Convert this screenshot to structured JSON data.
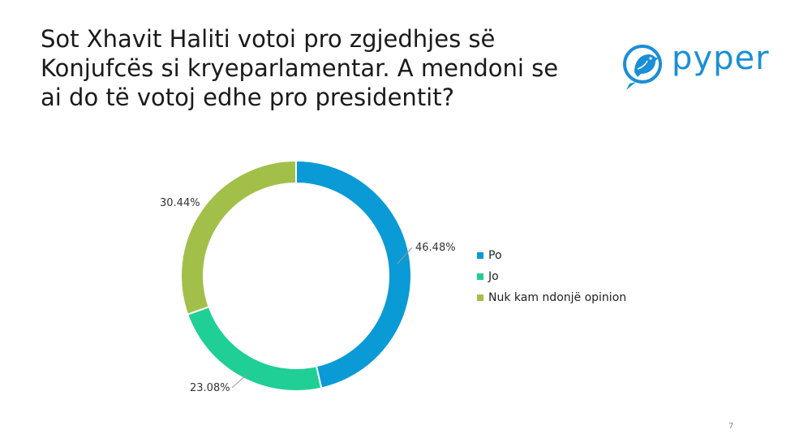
{
  "slide": {
    "title": "Sot Xhavit Haliti votoi pro zgjedhjes së\nKonjufcës si kryeparlamentar. A mendoni se\nai do të votoj edhe pro presidentit?",
    "page_number": "7"
  },
  "logo": {
    "text": "pyper",
    "icon": "bird-icon",
    "color": "#1a8fd6"
  },
  "chart_data": {
    "type": "pie",
    "variant": "doughnut",
    "categories": [
      "Po",
      "Jo",
      "Nuk kam ndonjë opinion"
    ],
    "values": [
      46.48,
      23.08,
      30.44
    ],
    "labels": [
      "46.48%",
      "23.08%",
      "30.44%"
    ],
    "colors": [
      "#0a9ad6",
      "#1fcf95",
      "#a2c049"
    ],
    "legend_position": "right"
  }
}
